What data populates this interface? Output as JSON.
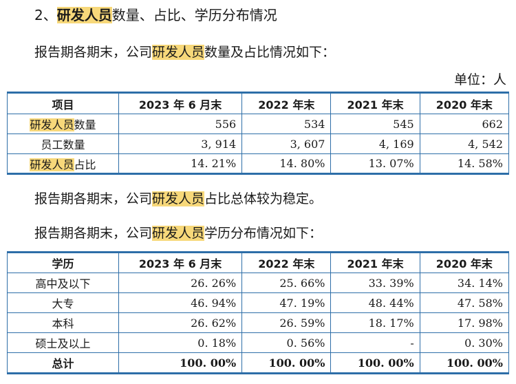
{
  "section_title_prefix": "2、",
  "section_title_hl": "研发人员",
  "section_title_suffix": "数量、占比、学历分布情况",
  "intro1_prefix": "报告期各期末，公司",
  "intro1_hl": "研发人员",
  "intro1_suffix": "数量及占比情况如下：",
  "unit": "单位：人",
  "table1": {
    "headers": [
      "项目",
      "2023 年 6 月末",
      "2022 年末",
      "2021 年末",
      "2020 年末"
    ],
    "rows": [
      {
        "label_hl": "研发人员",
        "label_rest": "数量",
        "values": [
          "556",
          "534",
          "545",
          "662"
        ]
      },
      {
        "label_hl": "",
        "label_rest": "员工数量",
        "values": [
          "3, 914",
          "3, 607",
          "4, 169",
          "4, 542"
        ]
      },
      {
        "label_hl": "研发人员",
        "label_rest": "占比",
        "values": [
          "14. 21%",
          "14. 80%",
          "13. 07%",
          "14. 58%"
        ]
      }
    ]
  },
  "sentence2_prefix": "报告期各期末，公司",
  "sentence2_hl": "研发人员",
  "sentence2_suffix": "占比总体较为稳定。",
  "intro2_prefix": "报告期各期末，公司",
  "intro2_hl": "研发人员",
  "intro2_suffix": "学历分布情况如下：",
  "table2": {
    "headers": [
      "学历",
      "2023 年 6 月末",
      "2022 年末",
      "2021 年末",
      "2020 年末"
    ],
    "rows": [
      {
        "label": "高中及以下",
        "values": [
          "26. 26%",
          "25. 66%",
          "33. 39%",
          "34. 14%"
        ]
      },
      {
        "label": "大专",
        "values": [
          "46. 94%",
          "47. 19%",
          "48. 44%",
          "47. 58%"
        ]
      },
      {
        "label": "本科",
        "values": [
          "26. 62%",
          "26. 59%",
          "18. 17%",
          "17. 98%"
        ]
      },
      {
        "label": "硕士及以上",
        "values": [
          "0. 18%",
          "0. 56%",
          "-",
          "0. 30%"
        ]
      },
      {
        "label": "总计",
        "values": [
          "100. 00%",
          "100. 00%",
          "100. 00%",
          "100. 00%"
        ]
      }
    ]
  }
}
